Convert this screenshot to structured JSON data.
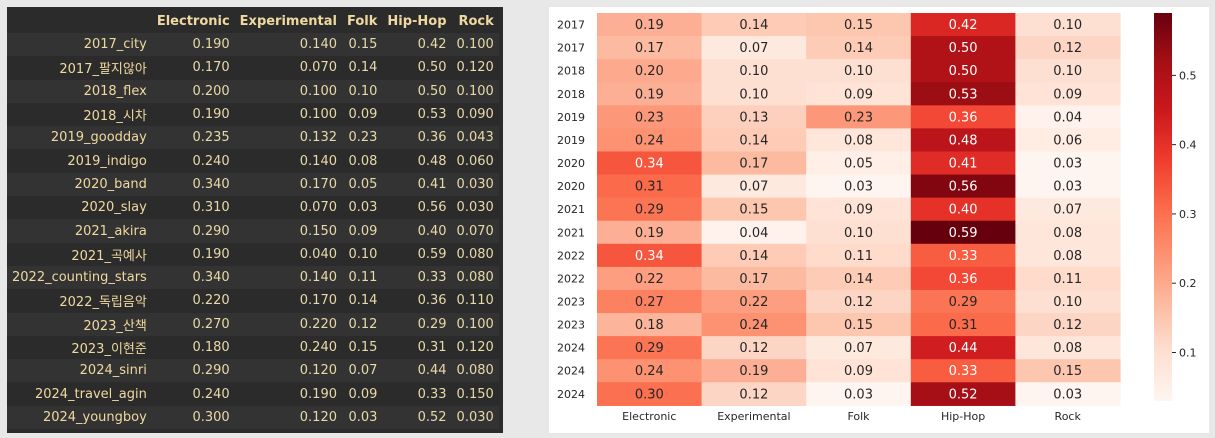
{
  "table": {
    "columns": [
      "",
      "Electronic",
      "Experimental",
      "Folk",
      "Hip-Hop",
      "Rock"
    ],
    "rows": [
      [
        "2017_city",
        "0.190",
        "0.140",
        "0.15",
        "0.42",
        "0.100"
      ],
      [
        "2017_팔지않아",
        "0.170",
        "0.070",
        "0.14",
        "0.50",
        "0.120"
      ],
      [
        "2018_flex",
        "0.200",
        "0.100",
        "0.10",
        "0.50",
        "0.100"
      ],
      [
        "2018_시차",
        "0.190",
        "0.100",
        "0.09",
        "0.53",
        "0.090"
      ],
      [
        "2019_goodday",
        "0.235",
        "0.132",
        "0.23",
        "0.36",
        "0.043"
      ],
      [
        "2019_indigo",
        "0.240",
        "0.140",
        "0.08",
        "0.48",
        "0.060"
      ],
      [
        "2020_band",
        "0.340",
        "0.170",
        "0.05",
        "0.41",
        "0.030"
      ],
      [
        "2020_slay",
        "0.310",
        "0.070",
        "0.03",
        "0.56",
        "0.030"
      ],
      [
        "2021_akira",
        "0.290",
        "0.150",
        "0.09",
        "0.40",
        "0.070"
      ],
      [
        "2021_곡예사",
        "0.190",
        "0.040",
        "0.10",
        "0.59",
        "0.080"
      ],
      [
        "2022_counting_stars",
        "0.340",
        "0.140",
        "0.11",
        "0.33",
        "0.080"
      ],
      [
        "2022_독립음악",
        "0.220",
        "0.170",
        "0.14",
        "0.36",
        "0.110"
      ],
      [
        "2023_산책",
        "0.270",
        "0.220",
        "0.12",
        "0.29",
        "0.100"
      ],
      [
        "2023_이현준",
        "0.180",
        "0.240",
        "0.15",
        "0.31",
        "0.120"
      ],
      [
        "2024_sinri",
        "0.290",
        "0.120",
        "0.07",
        "0.44",
        "0.080"
      ],
      [
        "2024_travel_agin",
        "0.240",
        "0.190",
        "0.09",
        "0.33",
        "0.150"
      ],
      [
        "2024_youngboy",
        "0.300",
        "0.120",
        "0.03",
        "0.52",
        "0.030"
      ]
    ]
  },
  "chart_data": {
    "type": "heatmap",
    "x_labels": [
      "Electronic",
      "Experimental",
      "Folk",
      "Hip-Hop",
      "Rock"
    ],
    "y_labels": [
      "2017",
      "2017",
      "2018",
      "2018",
      "2019",
      "2019",
      "2020",
      "2020",
      "2021",
      "2021",
      "2022",
      "2022",
      "2023",
      "2023",
      "2024",
      "2024",
      "2024"
    ],
    "values": [
      [
        0.19,
        0.14,
        0.15,
        0.42,
        0.1
      ],
      [
        0.17,
        0.07,
        0.14,
        0.5,
        0.12
      ],
      [
        0.2,
        0.1,
        0.1,
        0.5,
        0.1
      ],
      [
        0.19,
        0.1,
        0.09,
        0.53,
        0.09
      ],
      [
        0.23,
        0.13,
        0.23,
        0.36,
        0.04
      ],
      [
        0.24,
        0.14,
        0.08,
        0.48,
        0.06
      ],
      [
        0.34,
        0.17,
        0.05,
        0.41,
        0.03
      ],
      [
        0.31,
        0.07,
        0.03,
        0.56,
        0.03
      ],
      [
        0.29,
        0.15,
        0.09,
        0.4,
        0.07
      ],
      [
        0.19,
        0.04,
        0.1,
        0.59,
        0.08
      ],
      [
        0.34,
        0.14,
        0.11,
        0.33,
        0.08
      ],
      [
        0.22,
        0.17,
        0.14,
        0.36,
        0.11
      ],
      [
        0.27,
        0.22,
        0.12,
        0.29,
        0.1
      ],
      [
        0.18,
        0.24,
        0.15,
        0.31,
        0.12
      ],
      [
        0.29,
        0.12,
        0.07,
        0.44,
        0.08
      ],
      [
        0.24,
        0.19,
        0.09,
        0.33,
        0.15
      ],
      [
        0.3,
        0.12,
        0.03,
        0.52,
        0.03
      ]
    ],
    "colormap": "Reds",
    "vmin": 0.03,
    "vmax": 0.59,
    "colorbar_ticks": [
      0.1,
      0.2,
      0.3,
      0.4,
      0.5
    ],
    "colorbar_tick_labels": [
      "0.1",
      "0.2",
      "0.3",
      "0.4",
      "0.5"
    ]
  }
}
